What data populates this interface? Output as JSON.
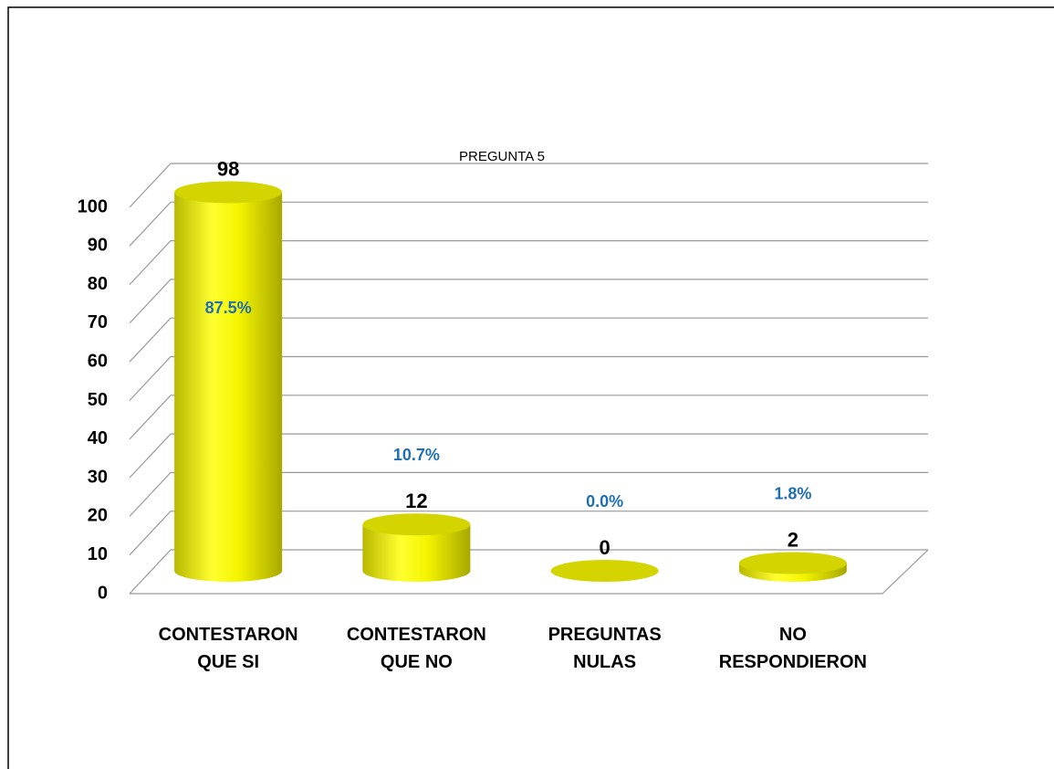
{
  "chart_data": {
    "type": "bar",
    "title": "PREGUNTA 5",
    "categories": [
      "CONTESTARON QUE SI",
      "CONTESTARON QUE NO",
      "PREGUNTAS NULAS",
      "NO RESPONDIERON"
    ],
    "values": [
      98,
      12,
      0,
      2
    ],
    "percentages": [
      87.5,
      10.7,
      0.0,
      1.8
    ],
    "percentage_labels": [
      "87.5%",
      "10.7%",
      "0.0%",
      "1.8%"
    ],
    "color": "#f2f200",
    "percentage_color": "#1f6fb5",
    "ylim": [
      0,
      100
    ],
    "yticks": [
      0,
      10,
      20,
      30,
      40,
      50,
      60,
      70,
      80,
      90,
      100
    ],
    "grid": true
  }
}
